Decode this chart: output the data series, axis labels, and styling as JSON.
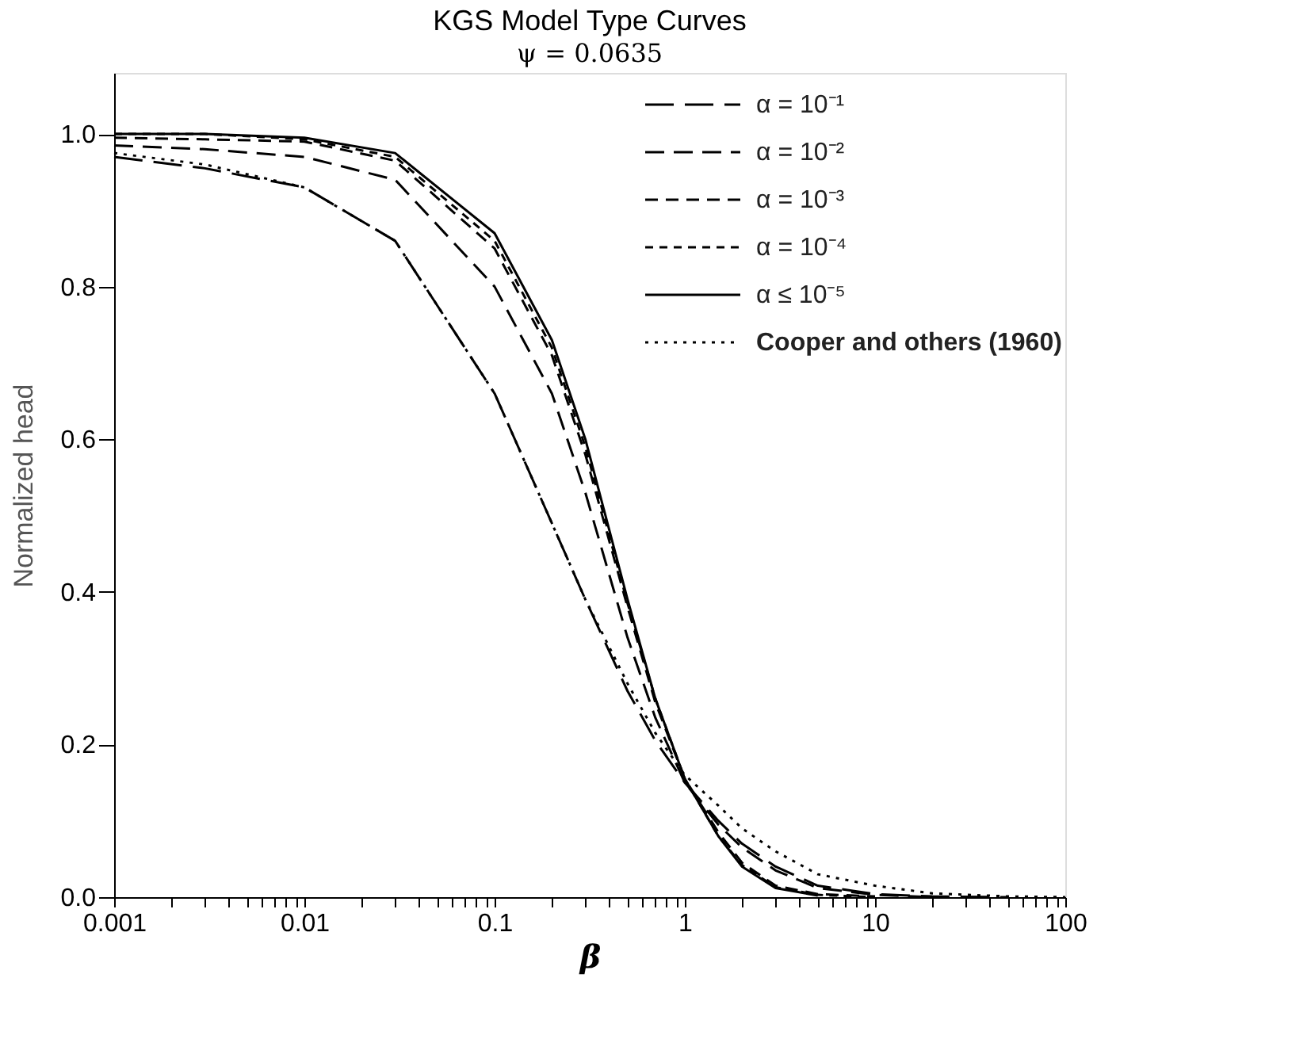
{
  "chart_data": {
    "type": "line",
    "title": "KGS Model Type Curves",
    "subtitle": "ψ = 0.0635",
    "xlabel": "β",
    "ylabel": "Normalized head",
    "x": [
      0.001,
      0.003,
      0.01,
      0.03,
      0.1,
      0.2,
      0.3,
      0.5,
      0.7,
      1,
      1.5,
      2,
      3,
      5,
      10,
      20,
      50,
      100
    ],
    "series": [
      {
        "name": "α = 10⁻¹",
        "color": "#000000",
        "line_style": "dashed",
        "values": [
          0.97,
          0.955,
          0.93,
          0.86,
          0.66,
          0.49,
          0.39,
          0.27,
          0.205,
          0.15,
          0.1,
          0.07,
          0.04,
          0.015,
          0.004,
          0.001,
          0,
          null
        ]
      },
      {
        "name": "α = 10⁻²",
        "color": "#000000",
        "line_style": "dashed",
        "values": [
          0.985,
          0.98,
          0.97,
          0.94,
          0.8,
          0.66,
          0.53,
          0.34,
          0.235,
          0.15,
          0.095,
          0.065,
          0.035,
          0.012,
          0.003,
          0,
          null,
          null
        ]
      },
      {
        "name": "α = 10⁻³",
        "color": "#000000",
        "line_style": "dashed",
        "values": [
          0.995,
          0.993,
          0.99,
          0.965,
          0.85,
          0.71,
          0.58,
          0.38,
          0.255,
          0.155,
          0.085,
          0.045,
          0.015,
          0.004,
          0.001,
          null,
          null,
          null
        ]
      },
      {
        "name": "α = 10⁻⁴",
        "color": "#000000",
        "line_style": "dashed",
        "values": [
          1.0,
          1.0,
          0.993,
          0.97,
          0.86,
          0.72,
          0.59,
          0.385,
          0.26,
          0.155,
          0.08,
          0.042,
          0.013,
          0.003,
          0,
          null,
          null,
          null
        ]
      },
      {
        "name": "α ≤ 10⁻⁵",
        "color": "#000000",
        "line_style": "solid",
        "values": [
          1.0,
          1.0,
          0.995,
          0.975,
          0.87,
          0.73,
          0.6,
          0.39,
          0.26,
          0.155,
          0.08,
          0.04,
          0.012,
          0.002,
          null,
          null,
          null,
          null
        ]
      },
      {
        "name": "Cooper and others (1960)",
        "color": "#000000",
        "line_style": "dotted",
        "values": [
          0.975,
          0.96,
          0.93,
          0.86,
          0.66,
          0.49,
          0.39,
          0.28,
          0.215,
          0.16,
          0.12,
          0.09,
          0.06,
          0.03,
          0.015,
          0.005,
          0.001,
          0
        ]
      }
    ],
    "log": "x",
    "xlim": [
      0.001,
      100
    ],
    "xticks": [
      0.001,
      {
        "value": 0.002,
        "label": null
      },
      {
        "value": 0.003,
        "label": null
      },
      {
        "value": 0.004,
        "label": null
      },
      {
        "value": 0.005,
        "label": null
      },
      {
        "value": 0.006,
        "label": null
      },
      {
        "value": 0.007,
        "label": null
      },
      {
        "value": 0.008,
        "label": null
      },
      {
        "value": 0.009,
        "label": null
      },
      0.01,
      {
        "value": 0.02,
        "label": null
      },
      {
        "value": 0.03,
        "label": null
      },
      {
        "value": 0.04,
        "label": null
      },
      {
        "value": 0.05,
        "label": null
      },
      {
        "value": 0.06,
        "label": null
      },
      {
        "value": 0.07,
        "label": null
      },
      {
        "value": 0.08,
        "label": null
      },
      {
        "value": 0.09,
        "label": null
      },
      0.1,
      {
        "value": 0.2,
        "label": null
      },
      {
        "value": 0.3,
        "label": null
      },
      {
        "value": 0.4,
        "label": null
      },
      {
        "value": 0.5,
        "label": null
      },
      {
        "value": 0.6,
        "label": null
      },
      {
        "value": 0.7,
        "label": null
      },
      {
        "value": 0.8,
        "label": null
      },
      {
        "value": 0.9,
        "label": null
      },
      1,
      {
        "value": 2,
        "label": null
      },
      {
        "value": 3,
        "label": null
      },
      {
        "value": 4,
        "label": null
      },
      {
        "value": 5,
        "label": null
      },
      {
        "value": 6,
        "label": null
      },
      {
        "value": 7,
        "label": null
      },
      {
        "value": 8,
        "label": null
      },
      {
        "value": 9,
        "label": null
      },
      10,
      {
        "value": 20,
        "label": null
      },
      {
        "value": 30,
        "label": null
      },
      {
        "value": 40,
        "label": null
      },
      {
        "value": 50,
        "label": null
      },
      {
        "value": 60,
        "label": null
      },
      {
        "value": 70,
        "label": null
      },
      {
        "value": 80,
        "label": null
      },
      {
        "value": 90,
        "label": null
      },
      100
    ],
    "ylim": [
      0,
      1.08
    ],
    "yticks": [
      {
        "value": 0,
        "label": "0.0"
      },
      0.2,
      0.4,
      0.6,
      0.8,
      {
        "value": 1,
        "label": "1.0"
      }
    ],
    "grid": false,
    "legend": "top right",
    "marker": "none"
  }
}
